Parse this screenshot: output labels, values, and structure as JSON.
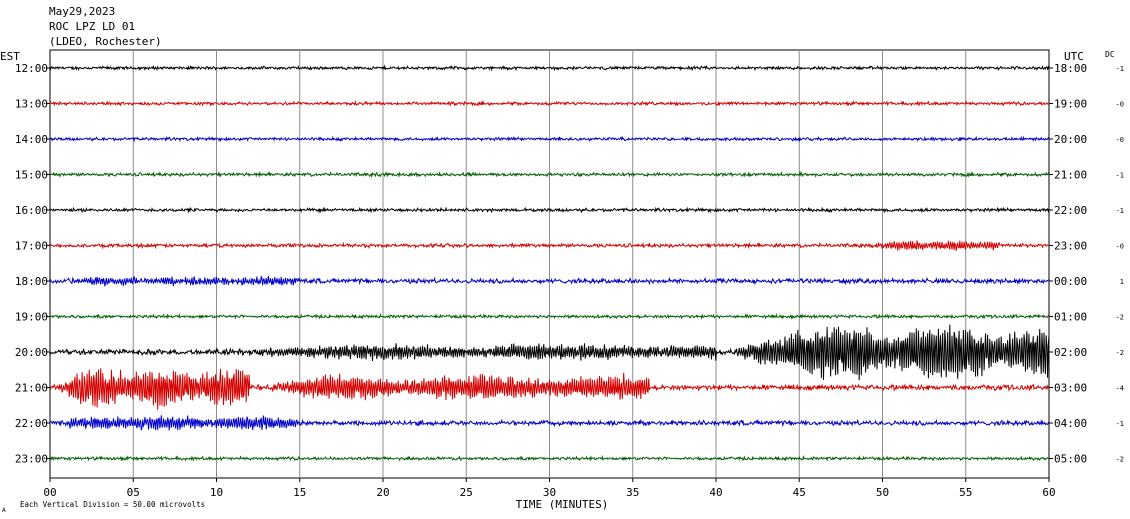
{
  "header": {
    "date": "May29,2023",
    "station": "ROC LPZ LD 01",
    "network": "(LDEO, Rochester)"
  },
  "left_axis_label": "EST",
  "right_axis_label": "UTC",
  "dc_label": "DC",
  "footer": {
    "xlabel": "TIME (MINUTES)",
    "scale_note": "Each Vertical Division =  50.00 microvolts",
    "corner_mark": "A"
  },
  "colors": {
    "black": "#000000",
    "red": "#d40000",
    "blue": "#0000c8",
    "green": "#006000",
    "grid": "#8c8c8c"
  },
  "chart_data": {
    "type": "line",
    "title": "ROC LPZ LD 01",
    "xlabel": "TIME (MINUTES)",
    "xlim": [
      0,
      60
    ],
    "x_ticks": [
      "00",
      "05",
      "10",
      "15",
      "20",
      "25",
      "30",
      "35",
      "40",
      "45",
      "50",
      "55",
      "60"
    ],
    "grid": true,
    "series": [
      {
        "est": "12:00",
        "utc": "18:00",
        "dc": "-1",
        "color": "black",
        "amplitude": 1.2,
        "events": []
      },
      {
        "est": "13:00",
        "utc": "19:00",
        "dc": "-0",
        "color": "red",
        "amplitude": 1.2,
        "events": []
      },
      {
        "est": "14:00",
        "utc": "20:00",
        "dc": "-0",
        "color": "blue",
        "amplitude": 1.2,
        "events": []
      },
      {
        "est": "15:00",
        "utc": "21:00",
        "dc": "-1",
        "color": "green",
        "amplitude": 1.3,
        "events": []
      },
      {
        "est": "16:00",
        "utc": "22:00",
        "dc": "-1",
        "color": "black",
        "amplitude": 1.3,
        "events": []
      },
      {
        "est": "17:00",
        "utc": "23:00",
        "dc": "-0",
        "color": "red",
        "amplitude": 1.4,
        "events": [
          {
            "start": 49,
            "end": 57,
            "peak": 5
          }
        ]
      },
      {
        "est": "18:00",
        "utc": "00:00",
        "dc": "1",
        "color": "blue",
        "amplitude": 1.8,
        "events": [
          {
            "start": 0,
            "end": 15,
            "peak": 4
          }
        ]
      },
      {
        "est": "19:00",
        "utc": "01:00",
        "dc": "-2",
        "color": "green",
        "amplitude": 1.2,
        "events": []
      },
      {
        "est": "20:00",
        "utc": "02:00",
        "dc": "-2",
        "color": "black",
        "amplitude": 2.0,
        "events": [
          {
            "start": 10,
            "end": 40,
            "peak": 8
          },
          {
            "start": 41,
            "end": 60,
            "peak": 30
          }
        ]
      },
      {
        "est": "21:00",
        "utc": "03:00",
        "dc": "-4",
        "color": "red",
        "amplitude": 2.0,
        "events": [
          {
            "start": 0,
            "end": 12,
            "peak": 22
          },
          {
            "start": 12,
            "end": 36,
            "peak": 13
          }
        ]
      },
      {
        "est": "22:00",
        "utc": "04:00",
        "dc": "-1",
        "color": "blue",
        "amplitude": 1.8,
        "events": [
          {
            "start": 0,
            "end": 15,
            "peak": 7
          }
        ]
      },
      {
        "est": "23:00",
        "utc": "05:00",
        "dc": "-2",
        "color": "green",
        "amplitude": 1.2,
        "events": []
      }
    ]
  }
}
